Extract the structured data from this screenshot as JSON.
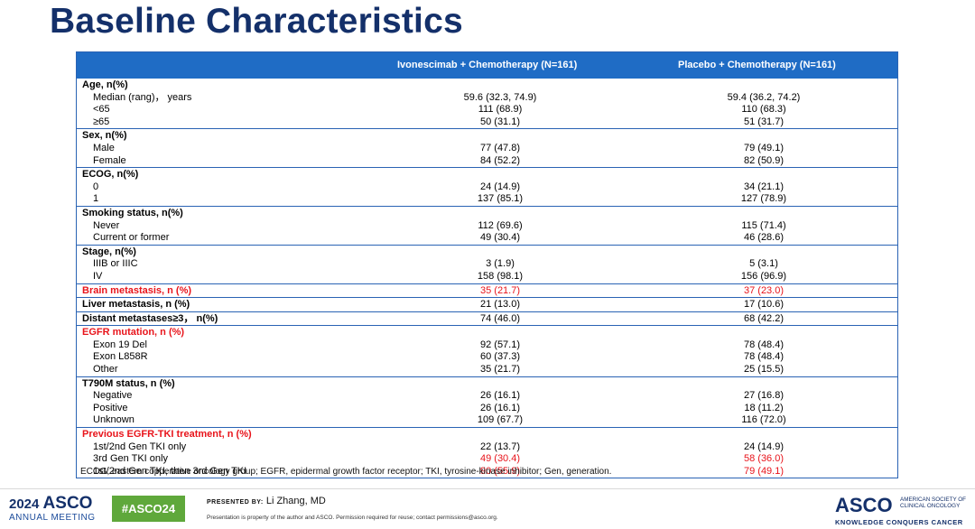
{
  "title": "Baseline Characteristics",
  "table": {
    "col1": "Ivonescimab + Chemotherapy (N=161)",
    "col2": "Placebo + Chemotherapy (N=161)",
    "groups": [
      {
        "rows": [
          {
            "label": "Age, n(%)",
            "v1": "",
            "v2": "",
            "header": true
          },
          {
            "label": "Median (rang)， years",
            "v1": "59.6 (32.3, 74.9)",
            "v2": "59.4 (36.2, 74.2)"
          },
          {
            "label": "<65",
            "v1": "111 (68.9)",
            "v2": "110 (68.3)"
          },
          {
            "label": "≥65",
            "v1": "50 (31.1)",
            "v2": "51 (31.7)"
          }
        ]
      },
      {
        "rows": [
          {
            "label": "Sex, n(%)",
            "v1": "",
            "v2": "",
            "header": true
          },
          {
            "label": "Male",
            "v1": "77 (47.8)",
            "v2": "79 (49.1)"
          },
          {
            "label": "Female",
            "v1": "84 (52.2)",
            "v2": "82 (50.9)"
          }
        ]
      },
      {
        "rows": [
          {
            "label": "ECOG, n(%)",
            "v1": "",
            "v2": "",
            "header": true
          },
          {
            "label": "0",
            "v1": "24 (14.9)",
            "v2": "34 (21.1)"
          },
          {
            "label": "1",
            "v1": "137 (85.1)",
            "v2": "127 (78.9)"
          }
        ]
      },
      {
        "rows": [
          {
            "label": "Smoking status, n(%)",
            "v1": "",
            "v2": "",
            "header": true
          },
          {
            "label": "Never",
            "v1": "112 (69.6)",
            "v2": "115 (71.4)"
          },
          {
            "label": "Current or former",
            "v1": "49 (30.4)",
            "v2": "46 (28.6)"
          }
        ]
      },
      {
        "rows": [
          {
            "label": "Stage, n(%)",
            "v1": "",
            "v2": "",
            "header": true
          },
          {
            "label": "IIIB or IIIC",
            "v1": "3 (1.9)",
            "v2": "5 (3.1)"
          },
          {
            "label": "IV",
            "v1": "158 (98.1)",
            "v2": "156 (96.9)"
          }
        ]
      },
      {
        "rows": [
          {
            "label": "Brain metastasis, n (%)",
            "v1": "35 (21.7)",
            "v2": "37 (23.0)",
            "header": true,
            "red": true
          }
        ]
      },
      {
        "rows": [
          {
            "label": "Liver metastasis, n (%)",
            "v1": "21 (13.0)",
            "v2": "17 (10.6)",
            "header": true
          }
        ]
      },
      {
        "rows": [
          {
            "label": "Distant metastases≥3， n(%)",
            "v1": "74 (46.0)",
            "v2": "68 (42.2)",
            "header": true
          }
        ]
      },
      {
        "rows": [
          {
            "label": "EGFR mutation, n (%)",
            "v1": "",
            "v2": "",
            "header": true,
            "red": true
          },
          {
            "label": "Exon 19 Del",
            "v1": "92 (57.1)",
            "v2": "78 (48.4)"
          },
          {
            "label": "Exon L858R",
            "v1": "60 (37.3)",
            "v2": "78 (48.4)"
          },
          {
            "label": "Other",
            "v1": "35 (21.7)",
            "v2": "25 (15.5)"
          }
        ]
      },
      {
        "rows": [
          {
            "label": "T790M status, n (%)",
            "v1": "",
            "v2": "",
            "header": true
          },
          {
            "label": "Negative",
            "v1": "26 (16.1)",
            "v2": "27 (16.8)"
          },
          {
            "label": "Positive",
            "v1": "26 (16.1)",
            "v2": "18 (11.2)"
          },
          {
            "label": "Unknown",
            "v1": "109 (67.7)",
            "v2": "116 (72.0)"
          }
        ]
      },
      {
        "rows": [
          {
            "label": "Previous EGFR-TKI treatment, n (%)",
            "v1": "",
            "v2": "",
            "header": true,
            "red": true
          },
          {
            "label": "1st/2nd Gen TKI only",
            "v1": "22 (13.7)",
            "v2": "24 (14.9)"
          },
          {
            "label": "3rd Gen TKI only",
            "v1": "49 (30.4)",
            "v2": "58 (36.0)",
            "redvals": true
          },
          {
            "label": "1st/2nd Gen TKI, then 3rd Gen TKI",
            "v1": "90 (55.9)",
            "v2": "79 (49.1)",
            "redvals": true
          }
        ]
      }
    ]
  },
  "footnote": "ECOG, eastern copperative oncology group; EGFR, epidermal growth factor receptor; TKI, tyrosine-kinase inhibitor; Gen, generation.",
  "footer": {
    "year": "2024",
    "asco": "ASCO",
    "meeting": "ANNUAL MEETING",
    "hashtag": "#ASCO24",
    "presented_by_label": "PRESENTED BY:",
    "presenter": "Li Zhang, MD",
    "disclaimer": "Presentation is property of the author and ASCO. Permission required for reuse; contact permissions@asco.org.",
    "logo": "ASCO",
    "society_line1": "AMERICAN SOCIETY OF",
    "society_line2": "CLINICAL ONCOLOGY",
    "tagline": "KNOWLEDGE CONQUERS CANCER"
  }
}
